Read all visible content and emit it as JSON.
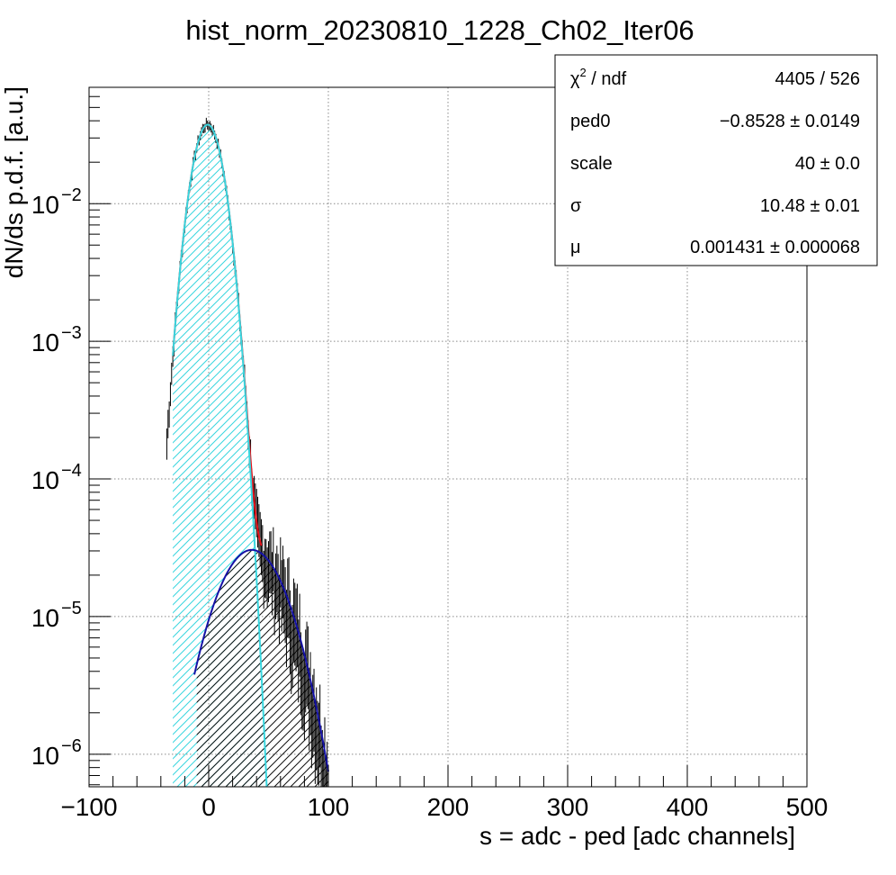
{
  "chart_data": {
    "type": "line",
    "title": "hist_norm_20230810_1228_Ch02_Iter06",
    "xlabel": "s = adc - ped [adc channels]",
    "ylabel": "dN/ds p.d.f. [a.u.]",
    "xlim": [
      -100,
      500
    ],
    "ylim": [
      5.8e-07,
      0.07
    ],
    "yscale": "log",
    "grid": true,
    "x_ticks": [
      "−100",
      "0",
      "100",
      "200",
      "300",
      "400",
      "500"
    ],
    "y_ticks": [
      {
        "base": "10",
        "exp": "−2",
        "value": 0.01
      },
      {
        "base": "10",
        "exp": "−3",
        "value": 0.001
      },
      {
        "base": "10",
        "exp": "−4",
        "value": 0.0001
      },
      {
        "base": "10",
        "exp": "−5",
        "value": 1e-05
      },
      {
        "base": "10",
        "exp": "−6",
        "value": 1e-06
      }
    ],
    "fit_params": {
      "ped0": -0.8528,
      "scale": 40,
      "sigma": 10.48,
      "mu": 0.001431,
      "pedestal_peak": 0.0375,
      "signal_peak_x": 36,
      "signal_peak_y": 3.05e-05,
      "signal_sigma": 23.5,
      "hist_range": [
        -35,
        100
      ]
    },
    "series": [
      {
        "role": "data histogram with error bars",
        "color": "#000000"
      },
      {
        "role": "total fit",
        "color": "#e8131c"
      },
      {
        "role": "pedestal component (hatched)",
        "color": "#38d6df"
      },
      {
        "role": "signal component (hatched)",
        "color": "#1512a7"
      }
    ]
  },
  "stats_box": {
    "rows": [
      {
        "label": "χ",
        "label_sup": "2",
        "label_rest": " / ndf",
        "value": "4405 / 526"
      },
      {
        "label": "ped0",
        "label_sup": "",
        "label_rest": "",
        "value": "−0.8528 ± 0.0149"
      },
      {
        "label": "scale",
        "label_sup": "",
        "label_rest": "",
        "value": "40 ± 0.0"
      },
      {
        "label": "σ",
        "label_sup": "",
        "label_rest": "",
        "value": "10.48 ± 0.01"
      },
      {
        "label": "μ",
        "label_sup": "",
        "label_rest": "",
        "value": "0.001431 ± 0.000068"
      }
    ]
  }
}
